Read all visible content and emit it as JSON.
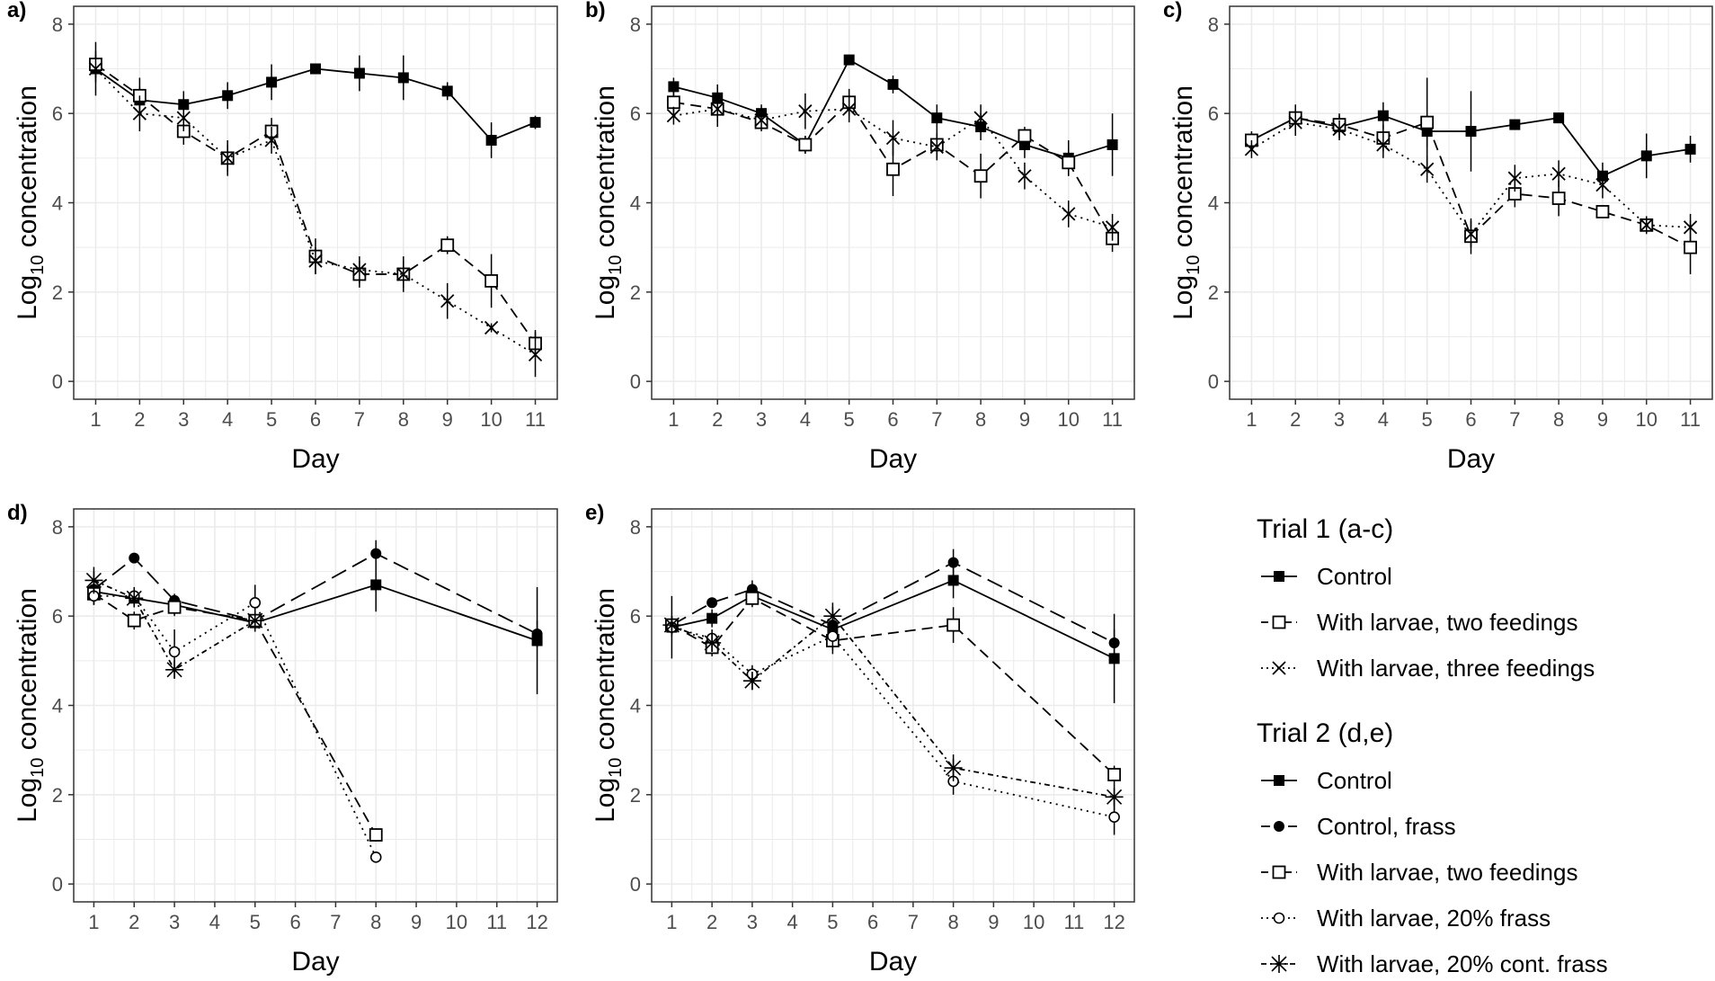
{
  "chart_data": [
    {
      "panel": "a)",
      "type": "line",
      "x": [
        1,
        2,
        3,
        4,
        5,
        6,
        7,
        8,
        9,
        10,
        11
      ],
      "xlim": [
        0.5,
        11.5
      ],
      "ylim": [
        -0.4,
        8.4
      ],
      "yticks": [
        0,
        2,
        4,
        6,
        8
      ],
      "xlabel": "Day",
      "ylabel": "Log10 concentration",
      "series": [
        {
          "name": "Control",
          "style": "control",
          "x": [
            1,
            2,
            3,
            4,
            5,
            6,
            7,
            8,
            9,
            10,
            11
          ],
          "values": [
            7.0,
            6.3,
            6.2,
            6.4,
            6.7,
            7.0,
            6.9,
            6.8,
            6.5,
            5.4,
            5.8
          ],
          "err": [
            0.6,
            0.3,
            0.3,
            0.3,
            0.4,
            0.1,
            0.4,
            0.5,
            0.2,
            0.4,
            0.15
          ]
        },
        {
          "name": "With larvae, two feedings",
          "style": "two",
          "x": [
            1,
            2,
            3,
            4,
            5,
            6,
            7,
            8,
            9,
            10,
            11
          ],
          "values": [
            7.1,
            6.4,
            5.6,
            5.0,
            5.6,
            2.8,
            2.4,
            2.4,
            3.05,
            2.25,
            0.85
          ],
          "err": [
            0.3,
            0.4,
            0.3,
            0.4,
            0.3,
            0.4,
            0.3,
            0.4,
            0.2,
            0.6,
            0.3
          ]
        },
        {
          "name": "With larvae, three feedings",
          "style": "three",
          "x": [
            1,
            2,
            3,
            4,
            5,
            6,
            7,
            8,
            9,
            10,
            11
          ],
          "values": [
            7.0,
            6.0,
            5.9,
            5.0,
            5.4,
            2.7,
            2.5,
            2.4,
            1.8,
            1.2,
            0.6
          ],
          "err": [
            0.3,
            0.4,
            0.3,
            0.3,
            0.3,
            0.3,
            0.3,
            0.3,
            0.4,
            0.1,
            0.5
          ]
        }
      ]
    },
    {
      "panel": "b)",
      "type": "line",
      "x": [
        1,
        2,
        3,
        4,
        5,
        6,
        7,
        8,
        9,
        10,
        11
      ],
      "xlim": [
        0.5,
        11.5
      ],
      "ylim": [
        -0.4,
        8.4
      ],
      "yticks": [
        0,
        2,
        4,
        6,
        8
      ],
      "xlabel": "Day",
      "ylabel": "Log10 concentration",
      "series": [
        {
          "name": "Control",
          "style": "control",
          "x": [
            1,
            2,
            3,
            4,
            5,
            6,
            7,
            8,
            9,
            10,
            11
          ],
          "values": [
            6.6,
            6.35,
            6.0,
            5.3,
            7.2,
            6.65,
            5.9,
            5.7,
            5.3,
            5.0,
            5.3
          ],
          "err": [
            0.2,
            0.3,
            0.2,
            0.2,
            0.1,
            0.2,
            0.3,
            0.3,
            0.3,
            0.4,
            0.7
          ]
        },
        {
          "name": "With larvae, two feedings",
          "style": "two",
          "x": [
            1,
            2,
            3,
            4,
            5,
            6,
            7,
            8,
            9,
            10,
            11
          ],
          "values": [
            6.25,
            6.1,
            5.8,
            5.3,
            6.25,
            4.75,
            5.3,
            4.6,
            5.5,
            4.9,
            3.2
          ],
          "err": [
            0.3,
            0.4,
            0.2,
            0.2,
            0.3,
            0.6,
            0.3,
            0.5,
            0.2,
            0.3,
            0.3
          ]
        },
        {
          "name": "With larvae, three feedings",
          "style": "three",
          "x": [
            1,
            2,
            3,
            4,
            5,
            6,
            7,
            8,
            9,
            10,
            11
          ],
          "values": [
            5.95,
            6.1,
            5.85,
            6.05,
            6.1,
            5.45,
            5.25,
            5.9,
            4.6,
            3.75,
            3.45
          ],
          "err": [
            0.2,
            0.3,
            0.2,
            0.4,
            0.3,
            0.4,
            0.3,
            0.3,
            0.3,
            0.3,
            0.3
          ]
        }
      ]
    },
    {
      "panel": "c)",
      "type": "line",
      "x": [
        1,
        2,
        3,
        4,
        5,
        6,
        7,
        8,
        9,
        10,
        11
      ],
      "xlim": [
        0.5,
        11.5
      ],
      "ylim": [
        -0.4,
        8.4
      ],
      "yticks": [
        0,
        2,
        4,
        6,
        8
      ],
      "xlabel": "Day",
      "ylabel": "Log10 concentration",
      "series": [
        {
          "name": "Control",
          "style": "control",
          "x": [
            1,
            2,
            3,
            4,
            5,
            6,
            7,
            8,
            9,
            10,
            11
          ],
          "values": [
            5.4,
            5.9,
            5.7,
            5.95,
            5.6,
            5.6,
            5.75,
            5.9,
            4.6,
            5.05,
            5.2
          ],
          "err": [
            0.15,
            0.2,
            0.3,
            0.3,
            0.35,
            0.9,
            0.1,
            0.1,
            0.3,
            0.5,
            0.3
          ]
        },
        {
          "name": "With larvae, two feedings",
          "style": "two",
          "x": [
            1,
            2,
            3,
            4,
            5,
            6,
            7,
            8,
            9,
            10,
            11
          ],
          "values": [
            5.4,
            5.9,
            5.75,
            5.45,
            5.8,
            3.25,
            4.2,
            4.1,
            3.8,
            3.5,
            3.0
          ],
          "err": [
            0.2,
            0.3,
            0.2,
            0.3,
            1.0,
            0.4,
            0.3,
            0.4,
            0.1,
            0.1,
            0.6
          ]
        },
        {
          "name": "With larvae, three feedings",
          "style": "three",
          "x": [
            1,
            2,
            3,
            4,
            5,
            6,
            7,
            8,
            9,
            10,
            11
          ],
          "values": [
            5.2,
            5.8,
            5.65,
            5.3,
            4.75,
            3.3,
            4.55,
            4.65,
            4.4,
            3.5,
            3.45
          ],
          "err": [
            0.2,
            0.3,
            0.2,
            0.3,
            0.3,
            0.3,
            0.3,
            0.3,
            0.3,
            0.2,
            0.3
          ]
        }
      ]
    },
    {
      "panel": "d)",
      "type": "line",
      "x": [
        1,
        2,
        3,
        4,
        5,
        6,
        7,
        8,
        9,
        10,
        11,
        12
      ],
      "xlim": [
        0.5,
        12.5
      ],
      "ylim": [
        -0.4,
        8.4
      ],
      "yticks": [
        0,
        2,
        4,
        6,
        8
      ],
      "xlabel": "Day",
      "ylabel": "Log10 concentration",
      "series": [
        {
          "name": "Control",
          "style": "control",
          "x": [
            1,
            2,
            3,
            5,
            8,
            12
          ],
          "values": [
            6.55,
            6.4,
            6.25,
            5.85,
            6.7,
            5.45
          ],
          "err": [
            0.3,
            0.2,
            0.2,
            0.2,
            0.6,
            1.2
          ]
        },
        {
          "name": "Control, frass",
          "style": "frassctl",
          "x": [
            1,
            2,
            3,
            5,
            8,
            12
          ],
          "values": [
            6.6,
            7.3,
            6.35,
            5.9,
            7.4,
            5.6
          ],
          "err": [
            0.2,
            0.1,
            0.15,
            0.2,
            0.3,
            0.3
          ]
        },
        {
          "name": "With larvae, two feedings",
          "style": "two",
          "x": [
            1,
            2,
            3,
            5,
            8
          ],
          "values": [
            6.5,
            5.9,
            6.2,
            5.9,
            1.1
          ],
          "err": [
            0.2,
            0.2,
            0.2,
            0.2,
            0.15
          ]
        },
        {
          "name": "With larvae, 20% frass",
          "style": "frass",
          "x": [
            1,
            2,
            3,
            5,
            8
          ],
          "values": [
            6.45,
            6.45,
            5.2,
            6.3,
            0.6
          ],
          "err": [
            0.2,
            0.2,
            0.5,
            0.4,
            0.1
          ]
        },
        {
          "name": "With larvae, 20% cont. frass",
          "style": "contfrass",
          "x": [
            1,
            2,
            3,
            5
          ],
          "values": [
            6.8,
            6.4,
            4.8,
            5.9
          ],
          "err": [
            0.3,
            0.2,
            0.2,
            0.2
          ]
        }
      ]
    },
    {
      "panel": "e)",
      "type": "line",
      "x": [
        1,
        2,
        3,
        4,
        5,
        6,
        7,
        8,
        9,
        10,
        11,
        12
      ],
      "xlim": [
        0.5,
        12.5
      ],
      "ylim": [
        -0.4,
        8.4
      ],
      "yticks": [
        0,
        2,
        4,
        6,
        8
      ],
      "xlabel": "Day",
      "ylabel": "Log10 concentration",
      "series": [
        {
          "name": "Control",
          "style": "control",
          "x": [
            1,
            2,
            3,
            5,
            8,
            12
          ],
          "values": [
            5.75,
            5.95,
            6.45,
            5.7,
            6.8,
            5.05
          ],
          "err": [
            0.7,
            0.2,
            0.2,
            0.4,
            0.4,
            1.0
          ]
        },
        {
          "name": "Control, frass",
          "style": "frassctl",
          "x": [
            1,
            2,
            3,
            5,
            8,
            12
          ],
          "values": [
            5.8,
            6.3,
            6.6,
            5.8,
            7.2,
            5.4
          ],
          "err": [
            0.2,
            0.1,
            0.2,
            0.3,
            0.3,
            0.3
          ]
        },
        {
          "name": "With larvae, two feedings",
          "style": "two",
          "x": [
            1,
            2,
            3,
            5,
            8,
            12
          ],
          "values": [
            5.8,
            5.3,
            6.4,
            5.45,
            5.8,
            2.45
          ],
          "err": [
            0.2,
            0.2,
            0.2,
            0.3,
            0.4,
            0.2
          ]
        },
        {
          "name": "With larvae, 20% frass",
          "style": "frass",
          "x": [
            1,
            2,
            3,
            5,
            8,
            12
          ],
          "values": [
            5.75,
            5.5,
            4.7,
            5.55,
            2.3,
            1.5
          ],
          "err": [
            0.2,
            0.2,
            0.2,
            0.3,
            0.3,
            0.4
          ]
        },
        {
          "name": "With larvae, 20% cont. frass",
          "style": "contfrass",
          "x": [
            1,
            2,
            3,
            5,
            8,
            12
          ],
          "values": [
            5.8,
            5.4,
            4.55,
            6.0,
            2.6,
            1.95
          ],
          "err": [
            0.2,
            0.2,
            0.2,
            0.3,
            0.3,
            0.3
          ]
        }
      ]
    }
  ],
  "legend": {
    "trial1": {
      "title": "Trial 1 (a-c)",
      "entries": [
        {
          "label": "Control",
          "style": "control"
        },
        {
          "label": "With larvae, two feedings",
          "style": "two"
        },
        {
          "label": "With larvae, three feedings",
          "style": "three"
        }
      ]
    },
    "trial2": {
      "title": "Trial 2 (d,e)",
      "entries": [
        {
          "label": "Control",
          "style": "control"
        },
        {
          "label": "Control, frass",
          "style": "frassctl"
        },
        {
          "label": "With larvae, two feedings",
          "style": "two"
        },
        {
          "label": "With larvae, 20% frass",
          "style": "frass"
        },
        {
          "label": "With larvae, 20% cont. frass",
          "style": "contfrass"
        }
      ]
    }
  }
}
